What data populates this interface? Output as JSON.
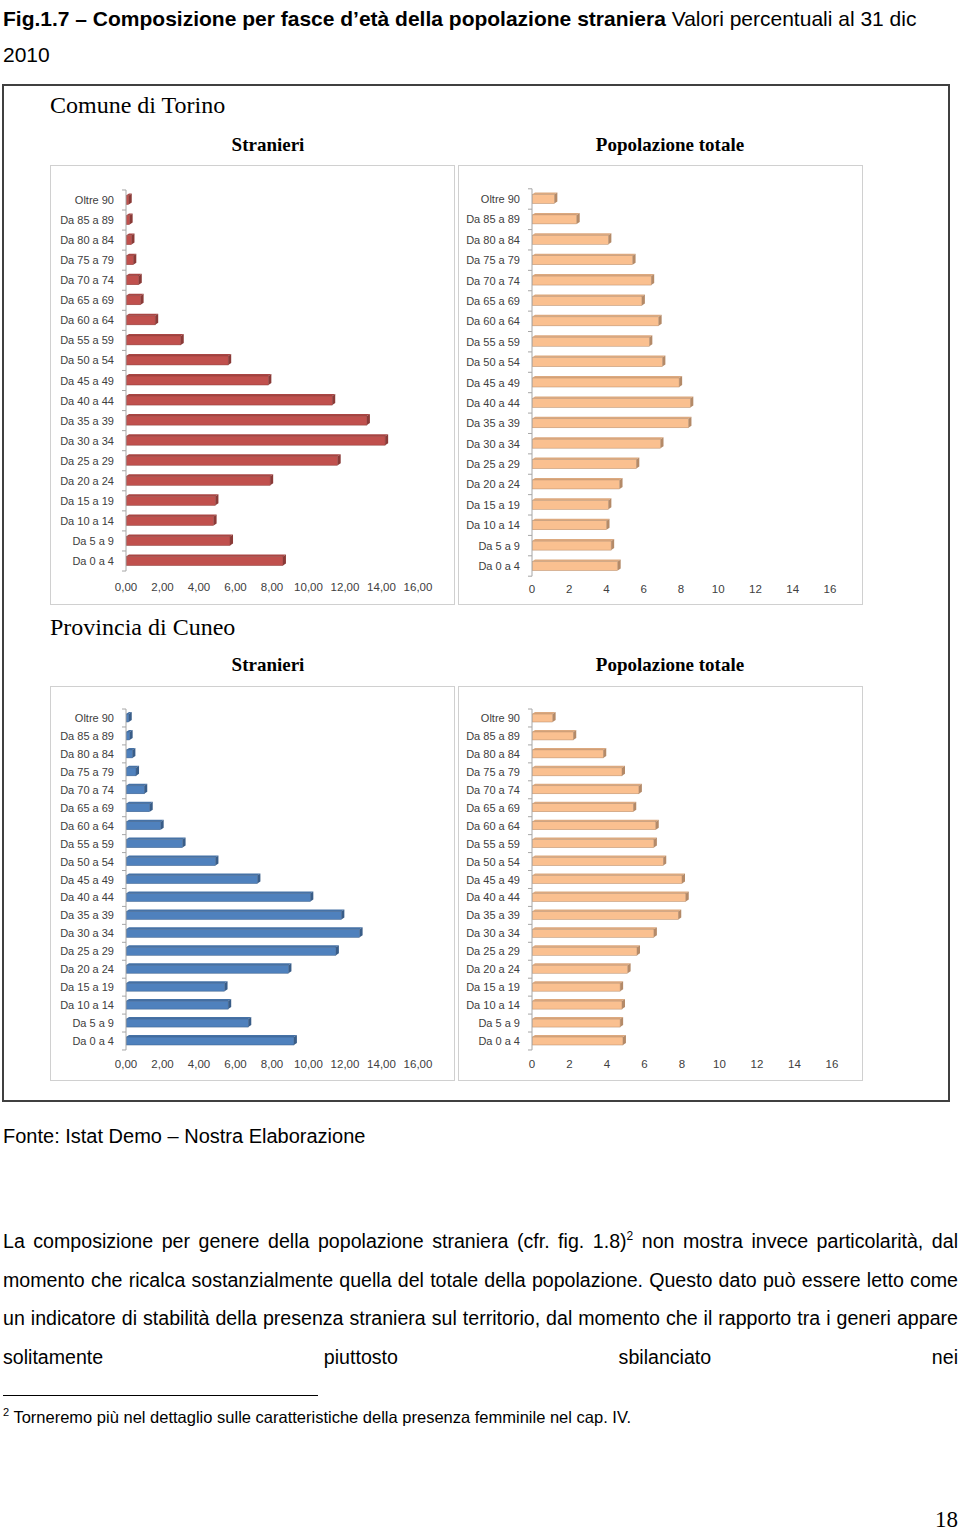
{
  "title": {
    "main": "Fig.1.7 – Composizione per fasce d’età della popolazione straniera",
    "detail": "Valori percentuali al 31 dic 2010"
  },
  "panels": [
    {
      "heading": "Comune di Torino"
    },
    {
      "heading": "Provincia di Cuneo"
    }
  ],
  "chart_data": [
    {
      "type": "bar",
      "orientation": "horizontal",
      "title": "Stranieri",
      "categories": [
        "Da 0 a 4",
        "Da 5 a 9",
        "Da 10 a 14",
        "Da 15 a 19",
        "Da 20 a 24",
        "Da 25 a 29",
        "Da 30 a 34",
        "Da 35 a 39",
        "Da 40 a 44",
        "Da 45 a 49",
        "Da 50 a 54",
        "Da 55 a 59",
        "Da 60 a 64",
        "Da 65 a 69",
        "Da 70 a 74",
        "Da 75 a 79",
        "Da 80 a 84",
        "Da 85 a 89",
        "Oltre 90"
      ],
      "values": [
        8.6,
        5.7,
        4.8,
        4.9,
        7.9,
        11.6,
        14.2,
        13.2,
        11.3,
        7.8,
        5.6,
        3.0,
        1.6,
        0.8,
        0.7,
        0.4,
        0.3,
        0.2,
        0.15
      ],
      "color": "#c0504d",
      "grid": false,
      "xlim": [
        0,
        16
      ],
      "xticks": [
        {
          "value": 0,
          "label": "0,00"
        },
        {
          "value": 2,
          "label": "2,00"
        },
        {
          "value": 4,
          "label": "4,00"
        },
        {
          "value": 6,
          "label": "6,00"
        },
        {
          "value": 8,
          "label": "8,00"
        },
        {
          "value": 10,
          "label": "10,00"
        },
        {
          "value": 12,
          "label": "12,00"
        },
        {
          "value": 14,
          "label": "14,00"
        },
        {
          "value": 16,
          "label": "16,00"
        }
      ]
    },
    {
      "type": "bar",
      "orientation": "horizontal",
      "title": "Popolazione totale",
      "categories": [
        "Da 0 a 4",
        "Da 5 a 9",
        "Da 10 a 14",
        "Da 15 a 19",
        "Da 20 a 24",
        "Da 25 a 29",
        "Da 30 a 34",
        "Da 35 a 39",
        "Da 40 a 44",
        "Da 45 a 49",
        "Da 50 a 54",
        "Da 55 a 59",
        "Da 60 a 64",
        "Da 65 a 69",
        "Da 70 a 74",
        "Da 75 a 79",
        "Da 80 a 84",
        "Da 85 a 89",
        "Oltre 90"
      ],
      "values": [
        4.6,
        4.25,
        4.0,
        4.1,
        4.7,
        5.6,
        6.9,
        8.4,
        8.5,
        7.9,
        7.0,
        6.3,
        6.8,
        5.9,
        6.4,
        5.4,
        4.1,
        2.4,
        1.2
      ],
      "color": "#fac090",
      "grid": false,
      "xlim": [
        0,
        16
      ],
      "xticks": [
        0,
        2,
        4,
        6,
        8,
        10,
        12,
        14,
        16
      ]
    },
    {
      "type": "bar",
      "orientation": "horizontal",
      "title": "Stranieri",
      "categories": [
        "Da 0 a 4",
        "Da 5 a 9",
        "Da 10 a 14",
        "Da 15 a 19",
        "Da 20 a 24",
        "Da 25 a 29",
        "Da 30 a 34",
        "Da 35 a 39",
        "Da 40 a 44",
        "Da 45 a 49",
        "Da 50 a 54",
        "Da 55 a 59",
        "Da 60 a 64",
        "Da 65 a 69",
        "Da 70 a 74",
        "Da 75 a 79",
        "Da 80 a 84",
        "Da 85 a 89",
        "Oltre 90"
      ],
      "values": [
        9.2,
        6.7,
        5.6,
        5.4,
        8.9,
        11.5,
        12.8,
        11.8,
        10.1,
        7.2,
        4.9,
        3.1,
        1.9,
        1.3,
        1.0,
        0.55,
        0.35,
        0.2,
        0.15
      ],
      "color": "#4f81bd",
      "grid": false,
      "xlim": [
        0,
        16
      ],
      "xticks": [
        {
          "value": 0,
          "label": "0,00"
        },
        {
          "value": 2,
          "label": "2,00"
        },
        {
          "value": 4,
          "label": "4,00"
        },
        {
          "value": 6,
          "label": "6,00"
        },
        {
          "value": 8,
          "label": "8,00"
        },
        {
          "value": 10,
          "label": "10,00"
        },
        {
          "value": 12,
          "label": "12,00"
        },
        {
          "value": 14,
          "label": "14,00"
        },
        {
          "value": 16,
          "label": "16,00"
        }
      ]
    },
    {
      "type": "bar",
      "orientation": "horizontal",
      "title": "Popolazione totale",
      "categories": [
        "Da 0 a 4",
        "Da 5 a 9",
        "Da 10 a 14",
        "Da 15 a 19",
        "Da 20 a 24",
        "Da 25 a 29",
        "Da 30 a 34",
        "Da 35 a 39",
        "Da 40 a 44",
        "Da 45 a 49",
        "Da 50 a 54",
        "Da 55 a 59",
        "Da 60 a 64",
        "Da 65 a 69",
        "Da 70 a 74",
        "Da 75 a 79",
        "Da 80 a 84",
        "Da 85 a 89",
        "Oltre 90"
      ],
      "values": [
        4.85,
        4.7,
        4.8,
        4.7,
        5.1,
        5.6,
        6.5,
        7.8,
        8.2,
        8.0,
        7.0,
        6.5,
        6.6,
        5.4,
        5.7,
        4.8,
        3.8,
        2.2,
        1.1
      ],
      "color": "#fac090",
      "grid": false,
      "xlim": [
        0,
        16
      ],
      "xticks": [
        0,
        2,
        4,
        6,
        8,
        10,
        12,
        14,
        16
      ]
    }
  ],
  "source": "Fonte: Istat Demo – Nostra Elaborazione",
  "paragraph": {
    "before": "La composizione per genere della popolazione straniera (cfr. fig. 1.8)",
    "note_ref": "2",
    "after": "non mostra invece particolarità, dal momento che ricalca sostanzialmente quella del totale della popolazione. Questo dato può essere letto come un indicatore di stabilità della presenza straniera sul territorio, dal momento che il rapporto tra i generi appare solitamente piuttosto sbilanciato nei"
  },
  "footnote": {
    "mark": "2",
    "text": "Torneremo più nel dettaglio sulle caratteristiche della presenza femminile nel cap. IV."
  },
  "page_number": "18"
}
